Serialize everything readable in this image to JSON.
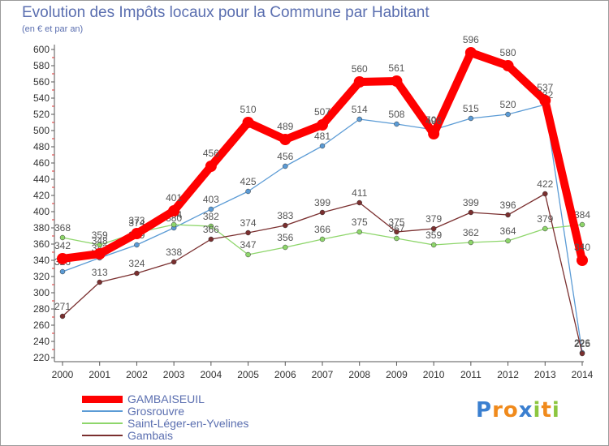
{
  "title": "Evolution des Impôts locaux pour la Commune par Habitant",
  "subtitle": "(en € et par an)",
  "brand": {
    "text": "Proxiti",
    "letters": [
      {
        "ch": "P",
        "color": "#3a7fd0"
      },
      {
        "ch": "r",
        "color": "#f08a1c"
      },
      {
        "ch": "o",
        "color": "#f08a1c"
      },
      {
        "ch": "x",
        "color": "#3a7fd0"
      },
      {
        "ch": "i",
        "color": "#8cc63f"
      },
      {
        "ch": "t",
        "color": "#f08a1c"
      },
      {
        "ch": "i",
        "color": "#8cc63f"
      }
    ]
  },
  "chart_data": {
    "type": "line",
    "title": "Evolution des Impôts locaux pour la Commune par Habitant",
    "subtitle": "(en € et par an)",
    "x": [
      "2000",
      "2001",
      "2002",
      "2003",
      "2004",
      "2005",
      "2006",
      "2007",
      "2008",
      "2009",
      "2010",
      "2011",
      "2012",
      "2013",
      "2014"
    ],
    "ylim": [
      220,
      600
    ],
    "yticks": [
      220,
      240,
      260,
      280,
      300,
      320,
      340,
      360,
      380,
      400,
      420,
      440,
      460,
      480,
      500,
      520,
      540,
      560,
      580,
      600
    ],
    "grid": false,
    "legend_position": "bottom-left",
    "series": [
      {
        "name": "Grosrouvre",
        "color": "#5b9bd5",
        "values": [
          326,
          343,
          359,
          380,
          403,
          425,
          456,
          481,
          514,
          508,
          501,
          515,
          520,
          532,
          226
        ],
        "labels": [
          "326",
          "343",
          "359",
          "380",
          "403",
          "425",
          "456",
          "481",
          "514",
          "508",
          "501",
          "515",
          "520",
          "532",
          "226"
        ]
      },
      {
        "name": "Saint-Léger-en-Yvelines",
        "color": "#8ed66b",
        "values": [
          368,
          359,
          374,
          384,
          382,
          347,
          356,
          366,
          375,
          367,
          359,
          362,
          364,
          379,
          384
        ],
        "labels": [
          "368",
          "359",
          "374",
          "384",
          "382",
          "347",
          "356",
          "366",
          "375",
          "367",
          "359",
          "362",
          "364",
          "379",
          "384"
        ]
      },
      {
        "name": "Gambais",
        "color": "#7a2f2f",
        "values": [
          271,
          313,
          324,
          338,
          366,
          374,
          383,
          399,
          411,
          375,
          379,
          399,
          396,
          422,
          225
        ],
        "labels": [
          "271",
          "313",
          "324",
          "338",
          "366",
          "374",
          "383",
          "399",
          "411",
          "375",
          "379",
          "399",
          "396",
          "422",
          "225"
        ]
      },
      {
        "name": "GAMBAISEUIL",
        "color": "#ff0000",
        "values": [
          342,
          348,
          373,
          401,
          456,
          510,
          489,
          507,
          560,
          561,
          496,
          596,
          580,
          537,
          340
        ],
        "labels": [
          "342",
          "348",
          "373",
          "401",
          "456",
          "510",
          "489",
          "507",
          "560",
          "561",
          "496",
          "596",
          "580",
          "537",
          "340"
        ]
      }
    ]
  },
  "legend": [
    {
      "name": "GAMBAISEUIL",
      "color": "#ff0000",
      "thickness": 9
    },
    {
      "name": "Grosrouvre",
      "color": "#5b9bd5",
      "thickness": 2
    },
    {
      "name": "Saint-Léger-en-Yvelines",
      "color": "#8ed66b",
      "thickness": 2
    },
    {
      "name": "Gambais",
      "color": "#7a2f2f",
      "thickness": 2
    }
  ]
}
